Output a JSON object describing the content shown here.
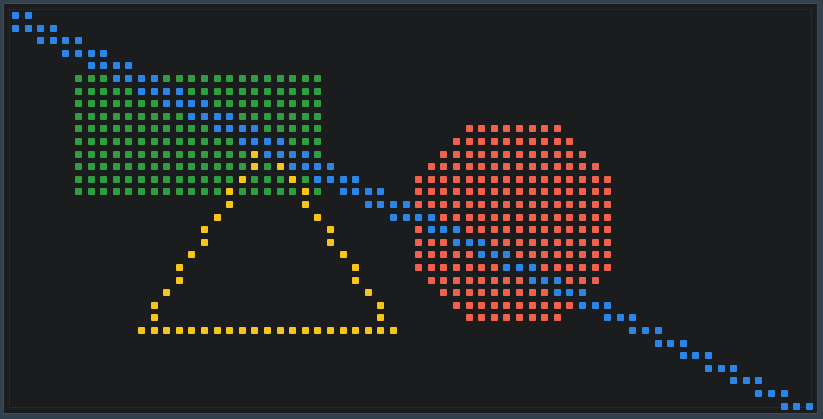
{
  "canvas": {
    "background": "#1b1c1e",
    "frame_color": "#33404d",
    "cell_size": 7
  },
  "layers": [
    {
      "name": "rectangle",
      "color": "#2e9e3e",
      "shape": "filled-rectangle"
    },
    {
      "name": "circle",
      "color": "#f0604a",
      "shape": "filled-circle"
    },
    {
      "name": "triangle",
      "color": "#f5c518",
      "shape": "outlined-triangle"
    },
    {
      "name": "line",
      "color": "#2a85e6",
      "shape": "diagonal-line"
    }
  ]
}
